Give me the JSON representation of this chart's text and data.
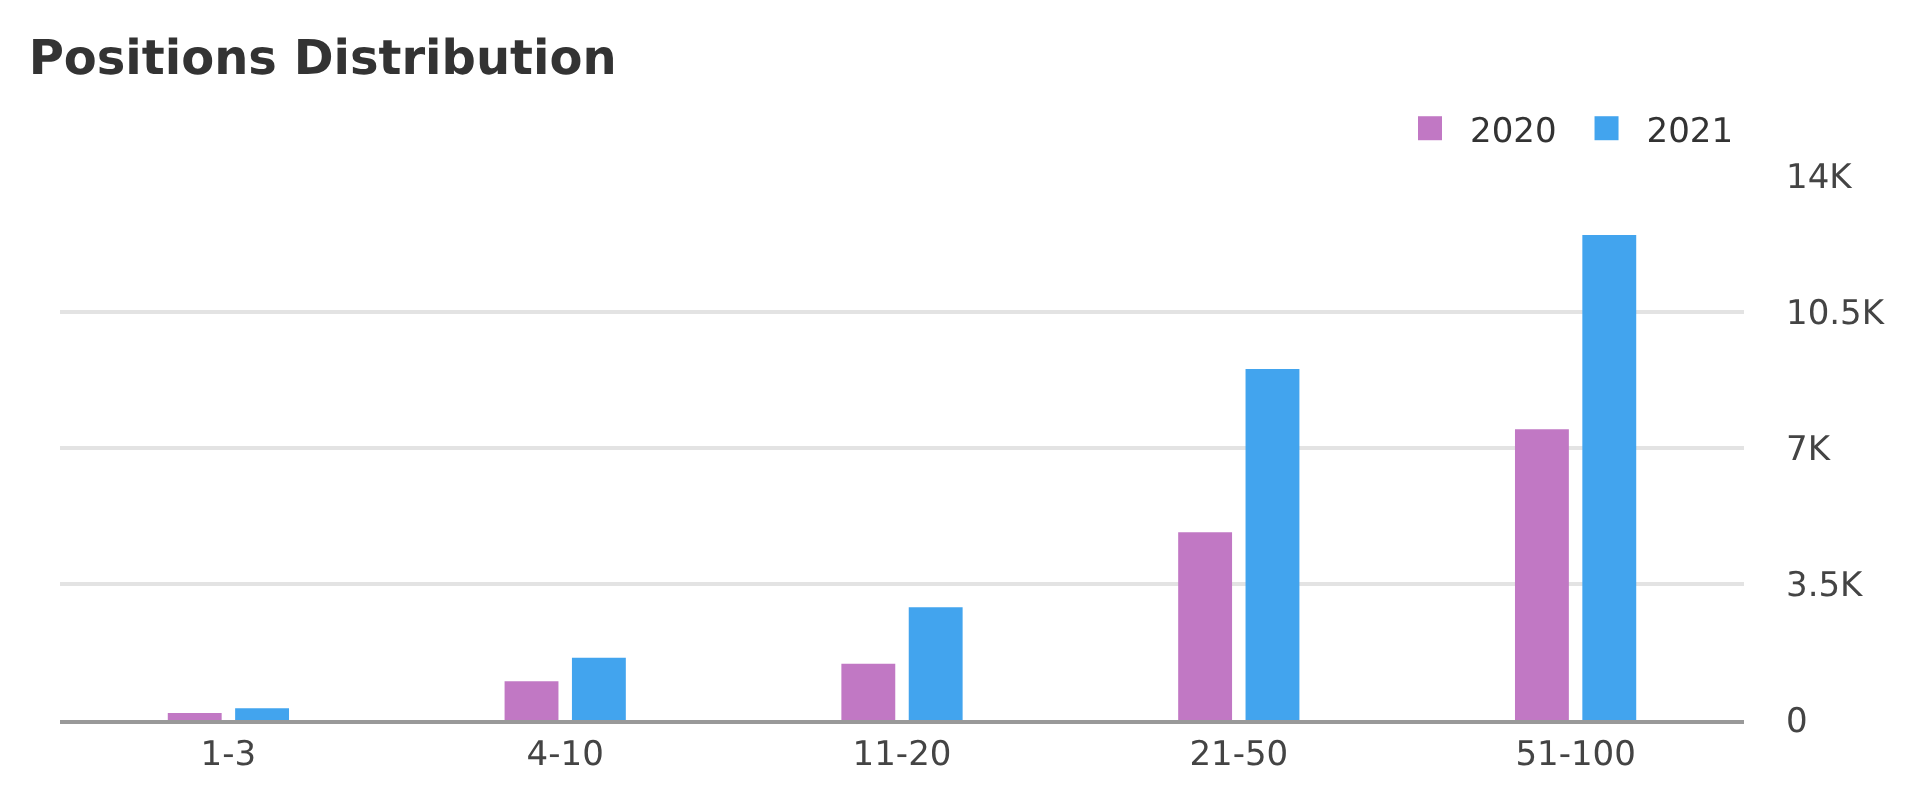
{
  "chart_data": {
    "type": "bar",
    "title": "Positions Distribution",
    "categories": [
      "1-3",
      "4-10",
      "11-20",
      "21-50",
      "51-100"
    ],
    "series": [
      {
        "name": "2020",
        "color": "#c178c4",
        "values": [
          180,
          1000,
          1450,
          4830,
          7480
        ]
      },
      {
        "name": "2021",
        "color": "#42a4ee",
        "values": [
          300,
          1600,
          2900,
          9030,
          12480
        ]
      }
    ],
    "ylim": [
      0,
      14000
    ],
    "yticks": [
      0,
      {
        "value": 3500,
        "label": "3.5K"
      },
      {
        "value": 7000,
        "label": "7K"
      },
      {
        "value": 10500,
        "label": "10.5K"
      },
      {
        "value": 14000,
        "label": "14K"
      }
    ],
    "grid": "y",
    "legend": "top right"
  }
}
